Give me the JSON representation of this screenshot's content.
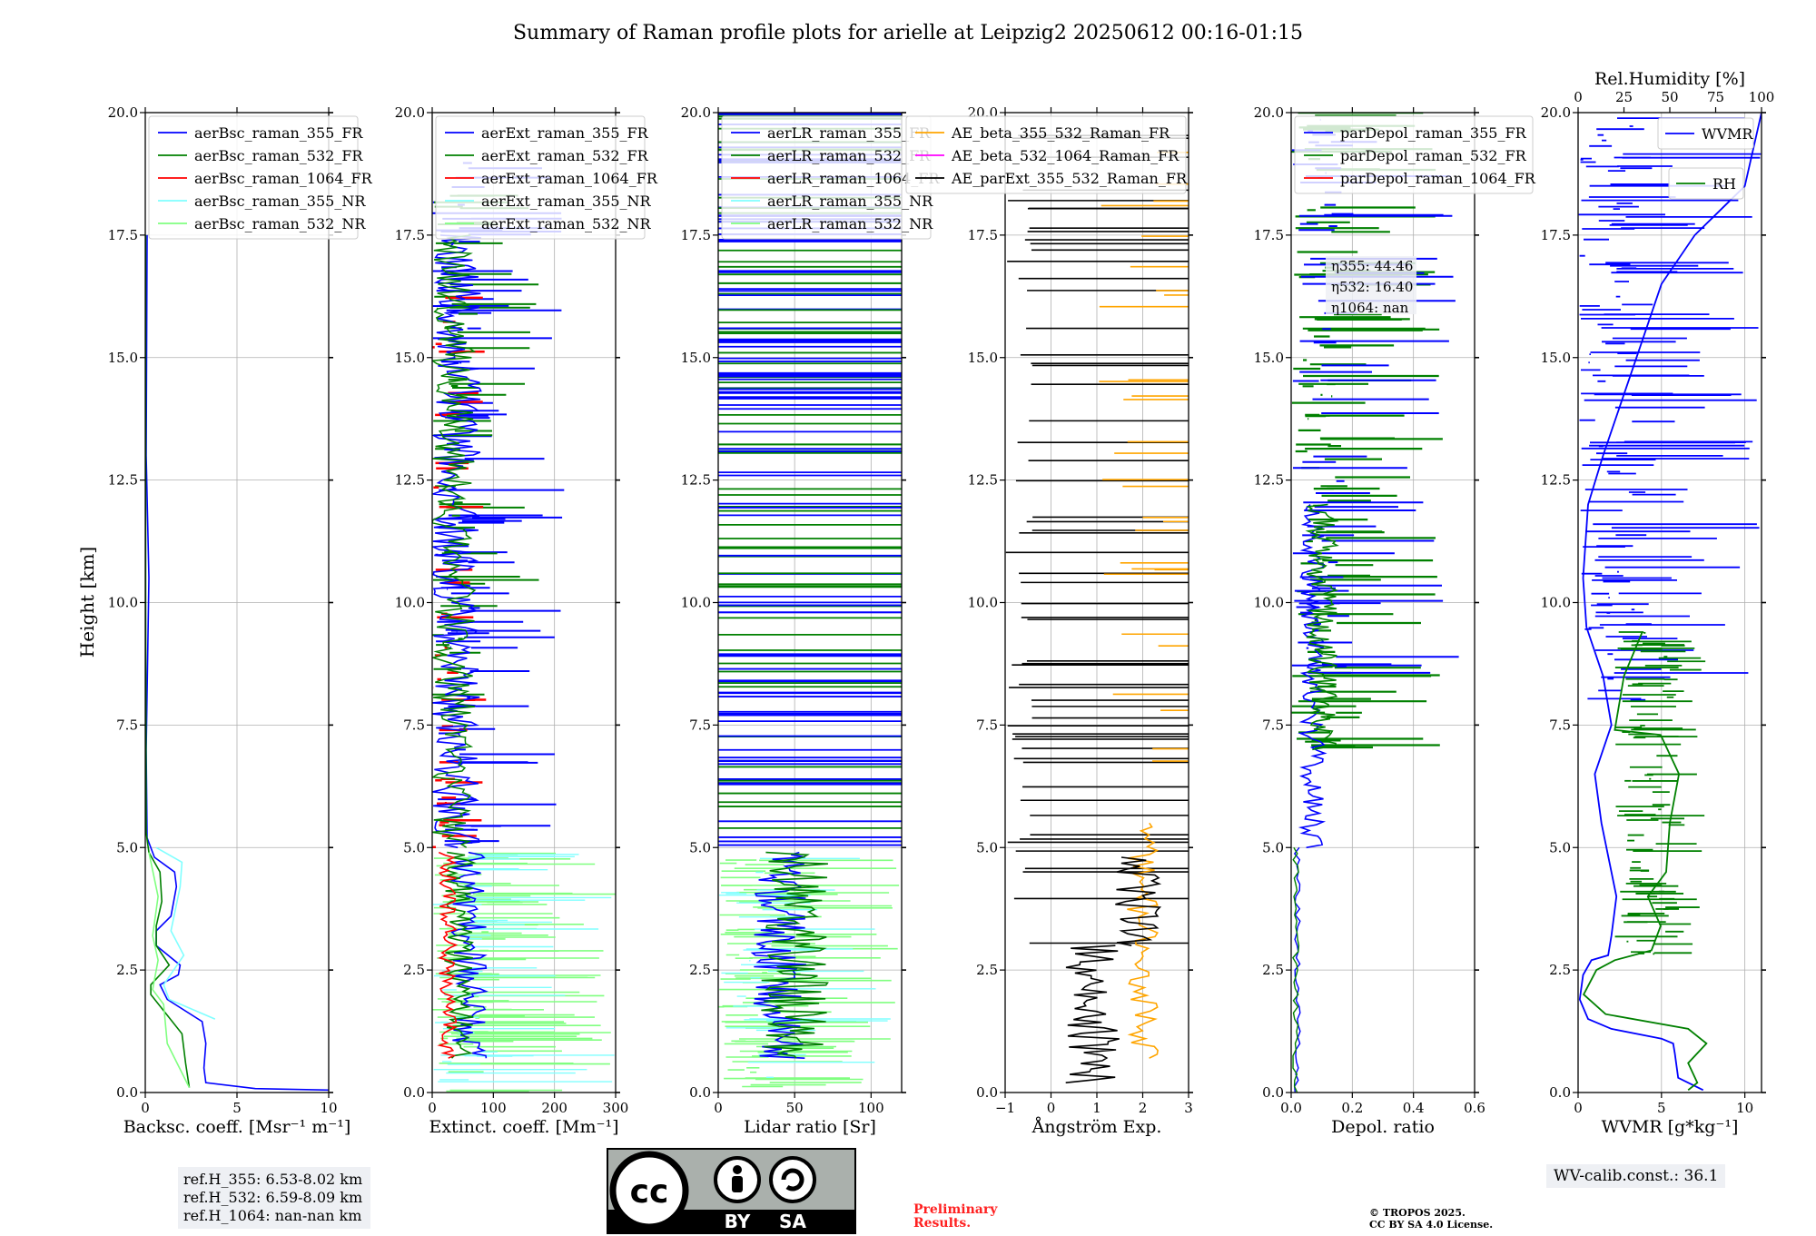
{
  "title": "Summary of Raman profile plots for arielle at Leipzig2 20250612 00:16-01:15",
  "colors": {
    "blue": "#0000ff",
    "green": "#008000",
    "red": "#ff0000",
    "cyan": "#80ffff",
    "lightgreen": "#80ff80",
    "orange": "#ffa500",
    "magenta": "#ff00ff",
    "black": "#000000",
    "grid": "#b0b0b0"
  },
  "chart_data": [
    {
      "type": "line",
      "id": "bsc",
      "xlabel": "Backsc. coeff. [Msr⁻¹ m⁻¹]",
      "ylabel": "Height [km]",
      "xlim": [
        0,
        10
      ],
      "ylim": [
        0,
        20
      ],
      "xticks": [
        0,
        5,
        10
      ],
      "xtick_labels": [
        "0",
        "5",
        "10"
      ],
      "legend": "top-left",
      "series": [
        {
          "name": "aerBsc_raman_355_FR",
          "color": "#0000ff",
          "points": [
            [
              10,
              0.05
            ],
            [
              6,
              0.08
            ],
            [
              3.3,
              0.2
            ],
            [
              3.2,
              0.5
            ],
            [
              3.3,
              1.0
            ],
            [
              3.1,
              1.45
            ],
            [
              1.2,
              1.9
            ],
            [
              0.8,
              2.2
            ],
            [
              1.8,
              2.4
            ],
            [
              1.9,
              2.6
            ],
            [
              0.6,
              3.0
            ],
            [
              0.6,
              3.3
            ],
            [
              1.4,
              3.6
            ],
            [
              1.7,
              4.2
            ],
            [
              1.6,
              4.5
            ],
            [
              0.5,
              4.8
            ],
            [
              0.1,
              5.2
            ],
            [
              0.05,
              7
            ],
            [
              0.2,
              10.5
            ],
            [
              0.05,
              13
            ],
            [
              0.1,
              17.5
            ]
          ]
        },
        {
          "name": "aerBsc_raman_532_FR",
          "color": "#008000",
          "points": [
            [
              2.4,
              0.1
            ],
            [
              2.2,
              0.6
            ],
            [
              2.0,
              1.2
            ],
            [
              0.3,
              2.0
            ],
            [
              0.3,
              2.2
            ],
            [
              1.3,
              2.6
            ],
            [
              0.6,
              3.0
            ],
            [
              0.6,
              3.4
            ],
            [
              0.9,
              3.9
            ],
            [
              0.8,
              4.5
            ],
            [
              0.2,
              4.9
            ],
            [
              0.05,
              5.3
            ],
            [
              0.02,
              10
            ],
            [
              0.02,
              15
            ],
            [
              0.02,
              17.5
            ]
          ]
        },
        {
          "name": "aerBsc_raman_1064_FR",
          "color": "#ff0000",
          "points": []
        },
        {
          "name": "aerBsc_raman_355_NR",
          "color": "#80ffff",
          "points": [
            [
              3.8,
              1.5
            ],
            [
              1.3,
              1.9
            ],
            [
              1.0,
              2.2
            ],
            [
              2.1,
              2.8
            ],
            [
              1.4,
              3.3
            ],
            [
              1.9,
              4.2
            ],
            [
              2.0,
              4.7
            ],
            [
              0.6,
              5.0
            ]
          ]
        },
        {
          "name": "aerBsc_raman_532_NR",
          "color": "#80ff80",
          "points": [
            [
              2.4,
              0.1
            ],
            [
              1.2,
              1.0
            ],
            [
              1.0,
              1.8
            ],
            [
              0.4,
              2.1
            ],
            [
              0.5,
              2.3
            ],
            [
              0.7,
              2.7
            ],
            [
              0.4,
              3.2
            ],
            [
              0.7,
              4.0
            ],
            [
              0.2,
              4.9
            ]
          ]
        }
      ]
    },
    {
      "type": "line",
      "id": "ext",
      "xlabel": "Extinct. coeff. [Mm⁻¹]",
      "ylabel": "",
      "xlim": [
        0,
        300
      ],
      "ylim": [
        0,
        20
      ],
      "xticks": [
        0,
        100,
        200,
        300
      ],
      "xtick_labels": [
        "0",
        "100",
        "200",
        "300"
      ],
      "legend": "top-left",
      "series": [
        {
          "name": "aerExt_raman_355_FR",
          "color": "#0000ff",
          "points": []
        },
        {
          "name": "aerExt_raman_532_FR",
          "color": "#008000",
          "points": []
        },
        {
          "name": "aerExt_raman_1064_FR",
          "color": "#ff0000",
          "points": []
        },
        {
          "name": "aerExt_raman_355_NR",
          "color": "#80ffff",
          "points": []
        },
        {
          "name": "aerExt_raman_532_NR",
          "color": "#80ff80",
          "points": []
        }
      ]
    },
    {
      "type": "line",
      "id": "lr",
      "xlabel": "Lidar ratio [Sr]",
      "ylabel": "",
      "xlim": [
        0,
        120
      ],
      "ylim": [
        0,
        20
      ],
      "xticks": [
        0,
        50,
        100
      ],
      "xtick_labels": [
        "0",
        "50",
        "100"
      ],
      "legend": "top-left",
      "series": [
        {
          "name": "aerLR_raman_355_FR",
          "color": "#0000ff",
          "points": []
        },
        {
          "name": "aerLR_raman_532_FR",
          "color": "#008000",
          "points": []
        },
        {
          "name": "aerLR_raman_1064_FR",
          "color": "#ff0000",
          "points": []
        },
        {
          "name": "aerLR_raman_355_NR",
          "color": "#80ffff",
          "points": []
        },
        {
          "name": "aerLR_raman_532_NR",
          "color": "#80ff80",
          "points": []
        }
      ]
    },
    {
      "type": "line",
      "id": "ae",
      "xlabel": "Ångström Exp.",
      "ylabel": "",
      "xlim": [
        -1,
        3
      ],
      "ylim": [
        0,
        20
      ],
      "xticks": [
        -1,
        0,
        1,
        2,
        3
      ],
      "xtick_labels": [
        "−1",
        "0",
        "1",
        "2",
        "3"
      ],
      "legend": "top-left",
      "series": [
        {
          "name": "AE_beta_355_532_Raman_FR",
          "color": "#ffa500",
          "points": []
        },
        {
          "name": "AE_beta_532_1064_Raman_FR",
          "color": "#ff00ff",
          "points": []
        },
        {
          "name": "AE_parExt_355_532_Raman_FR",
          "color": "#000000",
          "points": []
        }
      ]
    },
    {
      "type": "line",
      "id": "depol",
      "xlabel": "Depol. ratio",
      "ylabel": "",
      "xlim": [
        0,
        0.6
      ],
      "ylim": [
        0,
        20
      ],
      "xticks": [
        0,
        0.2,
        0.4,
        0.6
      ],
      "xtick_labels": [
        "0.0",
        "0.2",
        "0.4",
        "0.6"
      ],
      "legend": "top-left",
      "series": [
        {
          "name": "parDepol_raman_355_FR",
          "color": "#0000ff",
          "points": []
        },
        {
          "name": "parDepol_raman_532_FR",
          "color": "#008000",
          "points": []
        },
        {
          "name": "parDepol_raman_1064_FR",
          "color": "#ff0000",
          "points": []
        }
      ],
      "annotations": [
        "η355: 44.46",
        "η532: 16.40",
        "η1064: nan"
      ]
    },
    {
      "type": "line",
      "id": "wv",
      "xlabel": "WVMR [g*kg⁻¹]",
      "ylabel": "",
      "x2label": "Rel.Humidity [%]",
      "xlim": [
        0,
        11
      ],
      "ylim": [
        0,
        20
      ],
      "x2lim": [
        0,
        100
      ],
      "xticks": [
        0,
        5,
        10
      ],
      "xtick_labels": [
        "0",
        "5",
        "10"
      ],
      "x2ticks": [
        0,
        25,
        50,
        75,
        100
      ],
      "x2tick_labels": [
        "0",
        "25",
        "50",
        "75",
        "100"
      ],
      "legend": "top-right",
      "series": [
        {
          "name": "WVMR",
          "color": "#0000ff",
          "points": [
            [
              7.5,
              0.05
            ],
            [
              6.0,
              0.3
            ],
            [
              5.8,
              0.8
            ],
            [
              5.7,
              1.0
            ],
            [
              5.0,
              1.1
            ],
            [
              2.0,
              1.3
            ],
            [
              0.6,
              1.5
            ],
            [
              0.1,
              1.9
            ],
            [
              0.3,
              2.4
            ],
            [
              0.8,
              2.7
            ],
            [
              1.8,
              2.8
            ],
            [
              2.0,
              3.2
            ],
            [
              2.3,
              4.0
            ],
            [
              2.0,
              4.5
            ],
            [
              1.4,
              5.5
            ],
            [
              1.0,
              6.5
            ],
            [
              2.0,
              7.5
            ],
            [
              1.5,
              8.5
            ],
            [
              0.5,
              9.5
            ],
            [
              0.3,
              10.5
            ],
            [
              0.6,
              12
            ],
            [
              1.5,
              13
            ],
            [
              2.5,
              14
            ],
            [
              3.5,
              15
            ],
            [
              5,
              16.5
            ],
            [
              7,
              17.5
            ],
            [
              10,
              18.5
            ],
            [
              11,
              20
            ]
          ]
        },
        {
          "name": "RH",
          "color": "#008000",
          "points": [
            [
              60,
              0.05
            ],
            [
              65,
              0.2
            ],
            [
              60,
              0.6
            ],
            [
              70,
              1.0
            ],
            [
              60,
              1.3
            ],
            [
              15,
              1.6
            ],
            [
              3,
              2.0
            ],
            [
              10,
              2.5
            ],
            [
              20,
              2.7
            ],
            [
              40,
              2.9
            ],
            [
              45,
              3.4
            ],
            [
              38,
              4.0
            ],
            [
              48,
              4.5
            ],
            [
              50,
              5.5
            ],
            [
              55,
              6.5
            ],
            [
              45,
              7.3
            ],
            [
              20,
              7.4
            ],
            [
              25,
              8.5
            ],
            [
              35,
              9.4
            ]
          ]
        }
      ]
    }
  ],
  "yticks": [
    "0.0",
    "2.5",
    "5.0",
    "7.5",
    "10.0",
    "12.5",
    "15.0",
    "17.5",
    "20.0"
  ],
  "refbox": {
    "line1": "ref.H_355: 6.53-8.02 km",
    "line2": "ref.H_532: 6.59-8.09 km",
    "line3": "ref.H_1064: nan-nan km"
  },
  "wv_calib": "WV-calib.const.: 36.1",
  "preliminary": {
    "line1": "Preliminary",
    "line2": "Results."
  },
  "copyright": {
    "line1": "© TROPOS 2025.",
    "line2": "CC BY SA 4.0 License."
  },
  "license_badge": {
    "cc": "cc",
    "by": "BY",
    "sa": "SA"
  }
}
